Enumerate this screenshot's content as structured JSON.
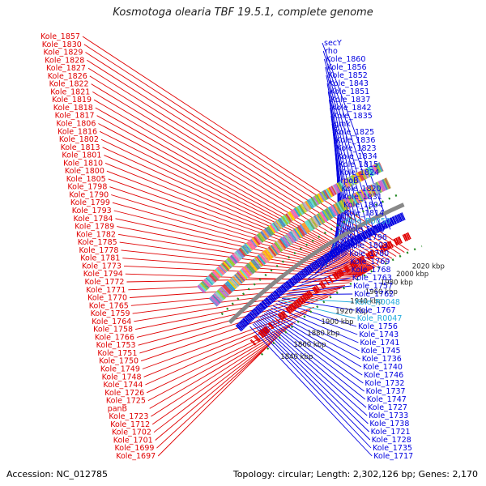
{
  "title": "Kosmotoga olearia TBF 19.5.1, complete genome",
  "accession": "Accession: NC_012785",
  "info": "Topology: circular; Length: 2,302,126 bp; Genes: 2,170",
  "colors": {
    "minus": "#e00000",
    "plus": "#0000e0",
    "rna": "#22aadd",
    "ring": "#888888",
    "dots": "#228822"
  },
  "kbp_marks": [
    {
      "text": "2020 kbp",
      "kb": 2020
    },
    {
      "text": "2000 kbp",
      "kb": 2000
    },
    {
      "text": "1980 kbp",
      "kb": 1980
    },
    {
      "text": "1960 kbp",
      "kb": 1960
    },
    {
      "text": "1940 kbp",
      "kb": 1940
    },
    {
      "text": "1920 kbp",
      "kb": 1920
    },
    {
      "text": "1900 kbp",
      "kb": 1900
    },
    {
      "text": "1880 kbp",
      "kb": 1880
    },
    {
      "text": "1860 kbp",
      "kb": 1860
    },
    {
      "text": "1840 kbp",
      "kb": 1840
    }
  ],
  "left_labels": [
    {
      "text": "Kole_1857",
      "kb": 2025
    },
    {
      "text": "Kole_1830",
      "kb": 2020
    },
    {
      "text": "Kole_1829",
      "kb": 2015
    },
    {
      "text": "Kole_1828",
      "kb": 2010
    },
    {
      "text": "Kole_1827",
      "kb": 2005
    },
    {
      "text": "Kole_1826",
      "kb": 2001
    },
    {
      "text": "Kole_1822",
      "kb": 1997
    },
    {
      "text": "Kole_1821",
      "kb": 1993
    },
    {
      "text": "Kole_1819",
      "kb": 1989
    },
    {
      "text": "Kole_1818",
      "kb": 1986
    },
    {
      "text": "Kole_1817",
      "kb": 1984
    },
    {
      "text": "Kole_1806",
      "kb": 1983
    },
    {
      "text": "Kole_1816",
      "kb": 1982
    },
    {
      "text": "Kole_1802",
      "kb": 1981
    },
    {
      "text": "Kole_1813",
      "kb": 1980
    },
    {
      "text": "Kole_1801",
      "kb": 1979
    },
    {
      "text": "Kole_1810",
      "kb": 1978
    },
    {
      "text": "Kole_1800",
      "kb": 1977
    },
    {
      "text": "Kole_1805",
      "kb": 1976
    },
    {
      "text": "Kole_1798",
      "kb": 1975
    },
    {
      "text": "Kole_1790",
      "kb": 1974
    },
    {
      "text": "Kole_1799",
      "kb": 1973
    },
    {
      "text": "Kole_1793",
      "kb": 1972
    },
    {
      "text": "Kole_1784",
      "kb": 1971
    },
    {
      "text": "Kole_1789",
      "kb": 1970
    },
    {
      "text": "Kole_1782",
      "kb": 1969
    },
    {
      "text": "Kole_1785",
      "kb": 1968
    },
    {
      "text": "Kole_1778",
      "kb": 1967
    },
    {
      "text": "Kole_1781",
      "kb": 1966
    },
    {
      "text": "Kole_1773",
      "kb": 1964
    },
    {
      "text": "Kole_1794",
      "kb": 1955
    },
    {
      "text": "Kole_1772",
      "kb": 1962
    },
    {
      "text": "Kole_1771",
      "kb": 1958
    },
    {
      "text": "Kole_1770",
      "kb": 1952
    },
    {
      "text": "Kole_1765",
      "kb": 1946
    },
    {
      "text": "Kole_1759",
      "kb": 1944
    },
    {
      "text": "Kole_1764",
      "kb": 1942
    },
    {
      "text": "Kole_1758",
      "kb": 1940
    },
    {
      "text": "Kole_1766",
      "kb": 1936
    },
    {
      "text": "Kole_1753",
      "kb": 1932
    },
    {
      "text": "Kole_1751",
      "kb": 1928
    },
    {
      "text": "Kole_1750",
      "kb": 1924
    },
    {
      "text": "Kole_1749",
      "kb": 1905
    },
    {
      "text": "Kole_1748",
      "kb": 1900
    },
    {
      "text": "Kole_1744",
      "kb": 1895
    },
    {
      "text": "Kole_1726",
      "kb": 1880
    },
    {
      "text": "Kole_1725",
      "kb": 1876
    },
    {
      "text": "panB",
      "kb": 1872
    },
    {
      "text": "Kole_1723",
      "kb": 1866
    },
    {
      "text": "Kole_1712",
      "kb": 1858
    },
    {
      "text": "Kole_1702",
      "kb": 1852
    },
    {
      "text": "Kole_1701",
      "kb": 1846
    },
    {
      "text": "Kole_1699",
      "kb": 1842
    },
    {
      "text": "Kole_1697",
      "kb": 1836
    }
  ],
  "right_labels": [
    {
      "text": "secY",
      "kb": 2017,
      "rna": false
    },
    {
      "text": "rho",
      "kb": 2008,
      "rna": false
    },
    {
      "text": "Kole_1860",
      "kb": 2000,
      "rna": false
    },
    {
      "text": "Kole_1856",
      "kb": 1994,
      "rna": false
    },
    {
      "text": "Kole_1852",
      "kb": 1988,
      "rna": false
    },
    {
      "text": "Kole_1843",
      "kb": 1982,
      "rna": false
    },
    {
      "text": "Kole_1851",
      "kb": 1978,
      "rna": false
    },
    {
      "text": "Kole_1837",
      "kb": 1975,
      "rna": false
    },
    {
      "text": "Kole_1842",
      "kb": 1973,
      "rna": false
    },
    {
      "text": "Kole_1835",
      "kb": 1970,
      "rna": false
    },
    {
      "text": "gmk",
      "kb": 1968,
      "rna": false
    },
    {
      "text": "Kole_1825",
      "kb": 1966,
      "rna": false
    },
    {
      "text": "Kole_1836",
      "kb": 1964,
      "rna": false
    },
    {
      "text": "Kole_1823",
      "kb": 1962,
      "rna": false
    },
    {
      "text": "Kole_1834",
      "kb": 1960,
      "rna": false
    },
    {
      "text": "Kole_1815",
      "kb": 1957,
      "rna": false
    },
    {
      "text": "Kole_1824",
      "kb": 1955,
      "rna": false
    },
    {
      "text": "rpoB",
      "kb": 1953,
      "rna": false
    },
    {
      "text": "Kole_1820",
      "kb": 1951,
      "rna": false
    },
    {
      "text": "Kole_1831",
      "kb": 1948,
      "rna": false
    },
    {
      "text": "Kole_1804",
      "kb": 1945,
      "rna": false
    },
    {
      "text": "Kole_1814",
      "kb": 1941,
      "rna": false
    },
    {
      "text": "Kole_R0050",
      "kb": 1940,
      "rna": true
    },
    {
      "text": "Kole_1797",
      "kb": 1934,
      "rna": false
    },
    {
      "text": "Kole_1796",
      "kb": 1930,
      "rna": false
    },
    {
      "text": "Kole_1803",
      "kb": 1927,
      "rna": false
    },
    {
      "text": "Kole_1780",
      "kb": 1918,
      "rna": false
    },
    {
      "text": "Kole_1769",
      "kb": 1910,
      "rna": false
    },
    {
      "text": "Kole_1768",
      "kb": 1904,
      "rna": false
    },
    {
      "text": "Kole_1763",
      "kb": 1898,
      "rna": false
    },
    {
      "text": "Kole_1757",
      "kb": 1893,
      "rna": false
    },
    {
      "text": "Kole_1762",
      "kb": 1890,
      "rna": false
    },
    {
      "text": "Kole_R0048",
      "kb": 1885,
      "rna": true
    },
    {
      "text": "Kole_1767",
      "kb": 1884,
      "rna": false
    },
    {
      "text": "Kole_R0047",
      "kb": 1881,
      "rna": true
    },
    {
      "text": "Kole_1756",
      "kb": 1879,
      "rna": false
    },
    {
      "text": "Kole_1743",
      "kb": 1876,
      "rna": false
    },
    {
      "text": "Kole_1741",
      "kb": 1872,
      "rna": false
    },
    {
      "text": "Kole_1745",
      "kb": 1869,
      "rna": false
    },
    {
      "text": "Kole_1736",
      "kb": 1866,
      "rna": false
    },
    {
      "text": "Kole_1740",
      "kb": 1864,
      "rna": false
    },
    {
      "text": "Kole_1746",
      "kb": 1862,
      "rna": false
    },
    {
      "text": "Kole_1732",
      "kb": 1860,
      "rna": false
    },
    {
      "text": "Kole_1737",
      "kb": 1858,
      "rna": false
    },
    {
      "text": "Kole_1747",
      "kb": 1856,
      "rna": false
    },
    {
      "text": "Kole_1727",
      "kb": 1854,
      "rna": false
    },
    {
      "text": "Kole_1733",
      "kb": 1852,
      "rna": false
    },
    {
      "text": "Kole_1738",
      "kb": 1850,
      "rna": false
    },
    {
      "text": "Kole_1721",
      "kb": 1848,
      "rna": false
    },
    {
      "text": "Kole_1728",
      "kb": 1846,
      "rna": false
    },
    {
      "text": "Kole_1735",
      "kb": 1844,
      "rna": false
    },
    {
      "text": "Kole_1717",
      "kb": 1840,
      "rna": false
    }
  ]
}
